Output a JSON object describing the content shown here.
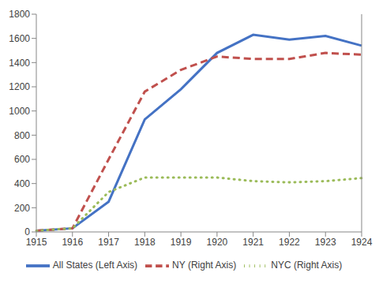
{
  "chart_data": {
    "type": "line",
    "categories": [
      "1915",
      "1916",
      "1917",
      "1918",
      "1919",
      "1920",
      "1921",
      "1922",
      "1923",
      "1924"
    ],
    "series": [
      {
        "name": "All States (Left Axis)",
        "color": "#4472c4",
        "line_style": "solid",
        "values": [
          10,
          30,
          250,
          930,
          1180,
          1480,
          1630,
          1590,
          1620,
          1540
        ]
      },
      {
        "name": "NY (Right Axis)",
        "color": "#c0504d",
        "line_style": "dashed",
        "axis": "y2",
        "values": [
          10,
          30,
          600,
          1160,
          1340,
          1450,
          1430,
          1430,
          1480,
          1465
        ]
      },
      {
        "name": "NYC (Right Axis)",
        "color": "#9bbb59",
        "line_style": "dotted",
        "axis": "y2",
        "values": [
          10,
          30,
          330,
          450,
          450,
          450,
          420,
          410,
          420,
          445
        ]
      }
    ],
    "ylim": [
      0,
      1800
    ],
    "yticks": [
      0,
      200,
      400,
      600,
      800,
      1000,
      1200,
      1400,
      1600,
      1800
    ],
    "y2lim": [
      0,
      1800
    ],
    "grid": false,
    "legend": "bottom"
  }
}
